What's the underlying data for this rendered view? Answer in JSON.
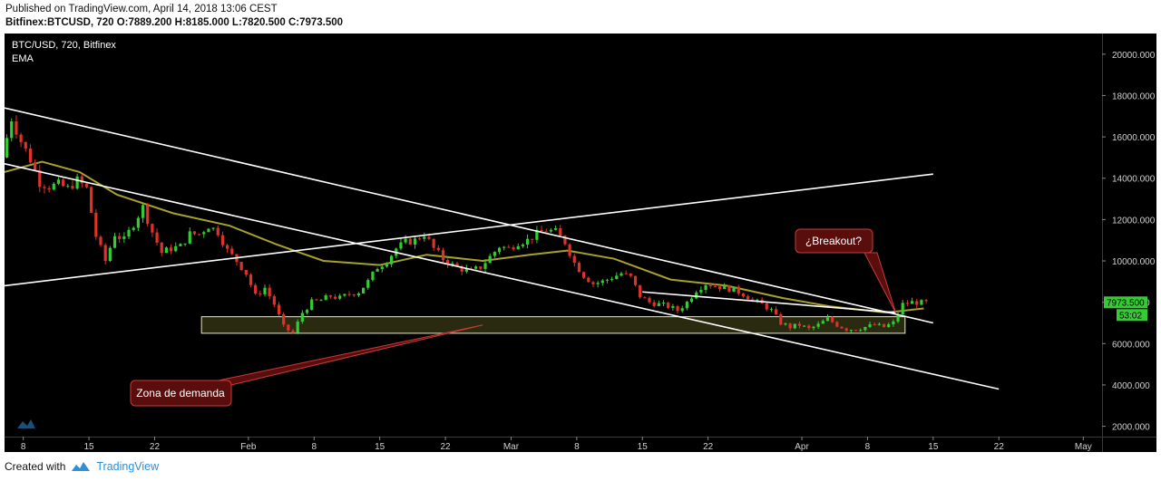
{
  "header": {
    "published": "Published on TradingView.com, April 14, 2018 13:06 CEST",
    "symbol": "Bitfinex:BTCUSD, 720",
    "ohlc": "O:7889.200 H:8185.000 L:7820.500 C:7973.500"
  },
  "legend": {
    "line1": "BTC/USD, 720, Bitfinex",
    "line2": "EMA"
  },
  "annotations": {
    "breakout": "¿Breakout?",
    "demand": "Zona de demanda"
  },
  "price_tags": {
    "last": "7973.500",
    "countdown": "53:02"
  },
  "footer": {
    "created": "Created with",
    "brand": "TradingView"
  },
  "colors": {
    "background": "#000000",
    "up": "#33cc33",
    "down": "#e0312a",
    "ema": "#a8a02c",
    "trendline": "#ffffff",
    "zone_fill": "#2a2a10",
    "callout_fill": "#5a0d0d",
    "callout_border": "#c83a3a"
  },
  "chart_data": {
    "type": "candlestick",
    "timeframe": "720",
    "y_axis": {
      "min": 1500,
      "max": 21000,
      "ticks": [
        2000,
        4000,
        6000,
        8000,
        10000,
        12000,
        14000,
        16000,
        18000,
        20000
      ],
      "tick_labels": [
        "2000.000",
        "4000.000",
        "6000.000",
        "8000.000",
        "10000.000",
        "12000.000",
        "14000.000",
        "16000.000",
        "18000.000",
        "20000.000"
      ]
    },
    "x_axis": {
      "start": "2018-01-06",
      "end": "2018-05-03",
      "ticks": [
        {
          "date": "2018-01-08",
          "label": "8"
        },
        {
          "date": "2018-01-15",
          "label": "15"
        },
        {
          "date": "2018-01-22",
          "label": "22"
        },
        {
          "date": "2018-02-01",
          "label": "Feb"
        },
        {
          "date": "2018-02-08",
          "label": "8"
        },
        {
          "date": "2018-02-15",
          "label": "15"
        },
        {
          "date": "2018-02-22",
          "label": "22"
        },
        {
          "date": "2018-03-01",
          "label": "Mar"
        },
        {
          "date": "2018-03-08",
          "label": "8"
        },
        {
          "date": "2018-03-15",
          "label": "15"
        },
        {
          "date": "2018-03-22",
          "label": "22"
        },
        {
          "date": "2018-04-01",
          "label": "Apr"
        },
        {
          "date": "2018-04-08",
          "label": "8"
        },
        {
          "date": "2018-04-15",
          "label": "15"
        },
        {
          "date": "2018-04-22",
          "label": "22"
        },
        {
          "date": "2018-05-01",
          "label": "May"
        }
      ]
    },
    "price_anchors": [
      [
        "2018-01-06",
        15000
      ],
      [
        "2018-01-07",
        16900
      ],
      [
        "2018-01-08",
        15800
      ],
      [
        "2018-01-09",
        14900
      ],
      [
        "2018-01-10",
        13800
      ],
      [
        "2018-01-11",
        13600
      ],
      [
        "2018-01-12",
        13700
      ],
      [
        "2018-01-13",
        13500
      ],
      [
        "2018-01-14",
        13900
      ],
      [
        "2018-01-15",
        13500
      ],
      [
        "2018-01-16",
        11200
      ],
      [
        "2018-01-17",
        10000
      ],
      [
        "2018-01-18",
        11300
      ],
      [
        "2018-01-19",
        11000
      ],
      [
        "2018-01-20",
        11800
      ],
      [
        "2018-01-21",
        12600
      ],
      [
        "2018-01-22",
        11400
      ],
      [
        "2018-01-23",
        10400
      ],
      [
        "2018-01-24",
        10600
      ],
      [
        "2018-01-25",
        10700
      ],
      [
        "2018-01-26",
        11300
      ],
      [
        "2018-01-27",
        11300
      ],
      [
        "2018-01-28",
        11700
      ],
      [
        "2018-01-29",
        11400
      ],
      [
        "2018-01-30",
        10500
      ],
      [
        "2018-01-31",
        10000
      ],
      [
        "2018-02-01",
        9400
      ],
      [
        "2018-02-02",
        8300
      ],
      [
        "2018-02-03",
        8700
      ],
      [
        "2018-02-04",
        7900
      ],
      [
        "2018-02-05",
        6800
      ],
      [
        "2018-02-06",
        6500
      ],
      [
        "2018-02-07",
        7500
      ],
      [
        "2018-02-08",
        8000
      ],
      [
        "2018-02-09",
        8100
      ],
      [
        "2018-02-10",
        8300
      ],
      [
        "2018-02-11",
        8200
      ],
      [
        "2018-02-12",
        8400
      ],
      [
        "2018-02-13",
        8500
      ],
      [
        "2018-02-14",
        9000
      ],
      [
        "2018-02-15",
        9700
      ],
      [
        "2018-02-16",
        10000
      ],
      [
        "2018-02-17",
        10600
      ],
      [
        "2018-02-18",
        10900
      ],
      [
        "2018-02-19",
        11000
      ],
      [
        "2018-02-20",
        11300
      ],
      [
        "2018-02-21",
        10600
      ],
      [
        "2018-02-22",
        10100
      ],
      [
        "2018-02-23",
        9800
      ],
      [
        "2018-02-24",
        9600
      ],
      [
        "2018-02-25",
        9500
      ],
      [
        "2018-02-26",
        9700
      ],
      [
        "2018-02-27",
        10200
      ],
      [
        "2018-02-28",
        10700
      ],
      [
        "2018-03-01",
        10600
      ],
      [
        "2018-03-02",
        10900
      ],
      [
        "2018-03-03",
        11000
      ],
      [
        "2018-03-04",
        11300
      ],
      [
        "2018-03-05",
        11500
      ],
      [
        "2018-03-06",
        11400
      ],
      [
        "2018-03-07",
        10900
      ],
      [
        "2018-03-08",
        9900
      ],
      [
        "2018-03-09",
        9300
      ],
      [
        "2018-03-10",
        8900
      ],
      [
        "2018-03-11",
        9000
      ],
      [
        "2018-03-12",
        9200
      ],
      [
        "2018-03-13",
        9400
      ],
      [
        "2018-03-14",
        9200
      ],
      [
        "2018-03-15",
        8300
      ],
      [
        "2018-03-16",
        8000
      ],
      [
        "2018-03-17",
        7900
      ],
      [
        "2018-03-18",
        7800
      ],
      [
        "2018-03-19",
        7600
      ],
      [
        "2018-03-20",
        8000
      ],
      [
        "2018-03-21",
        8600
      ],
      [
        "2018-03-22",
        8900
      ],
      [
        "2018-03-23",
        8800
      ],
      [
        "2018-03-24",
        8700
      ],
      [
        "2018-03-25",
        8600
      ],
      [
        "2018-03-26",
        8400
      ],
      [
        "2018-03-27",
        8100
      ],
      [
        "2018-03-28",
        7900
      ],
      [
        "2018-03-29",
        7600
      ],
      [
        "2018-03-30",
        7000
      ],
      [
        "2018-03-31",
        6800
      ],
      [
        "2018-04-01",
        6900
      ],
      [
        "2018-04-02",
        6700
      ],
      [
        "2018-04-03",
        6900
      ],
      [
        "2018-04-04",
        7200
      ],
      [
        "2018-04-05",
        6900
      ],
      [
        "2018-04-06",
        6700
      ],
      [
        "2018-04-07",
        6700
      ],
      [
        "2018-04-08",
        6800
      ],
      [
        "2018-04-09",
        6900
      ],
      [
        "2018-04-10",
        6800
      ],
      [
        "2018-04-11",
        7000
      ],
      [
        "2018-04-12",
        7900
      ],
      [
        "2018-04-13",
        8000
      ],
      [
        "2018-04-14",
        7973.5
      ]
    ],
    "ema_points": [
      [
        "2018-01-06",
        14300
      ],
      [
        "2018-01-10",
        14800
      ],
      [
        "2018-01-14",
        14300
      ],
      [
        "2018-01-18",
        13200
      ],
      [
        "2018-01-24",
        12300
      ],
      [
        "2018-01-30",
        11700
      ],
      [
        "2018-02-04",
        10800
      ],
      [
        "2018-02-09",
        10000
      ],
      [
        "2018-02-15",
        9800
      ],
      [
        "2018-02-20",
        10300
      ],
      [
        "2018-02-26",
        10000
      ],
      [
        "2018-03-03",
        10300
      ],
      [
        "2018-03-07",
        10500
      ],
      [
        "2018-03-12",
        10100
      ],
      [
        "2018-03-18",
        9100
      ],
      [
        "2018-03-24",
        8800
      ],
      [
        "2018-03-30",
        8200
      ],
      [
        "2018-04-04",
        7800
      ],
      [
        "2018-04-10",
        7500
      ],
      [
        "2018-04-14",
        7700
      ]
    ],
    "trendlines": [
      {
        "from": [
          "2018-01-06",
          17400
        ],
        "to": [
          "2018-04-15",
          7000
        ]
      },
      {
        "from": [
          "2018-01-06",
          14700
        ],
        "to": [
          "2018-04-22",
          3800
        ]
      },
      {
        "from": [
          "2018-01-06",
          8800
        ],
        "to": [
          "2018-04-15",
          14200
        ]
      },
      {
        "from": [
          "2018-03-15",
          8500
        ],
        "to": [
          "2018-04-11",
          7500
        ]
      }
    ],
    "demand_zone": {
      "from": "2018-01-27",
      "to": "2018-04-12",
      "low": 6500,
      "high": 7300
    },
    "last_price": 7973.5
  }
}
